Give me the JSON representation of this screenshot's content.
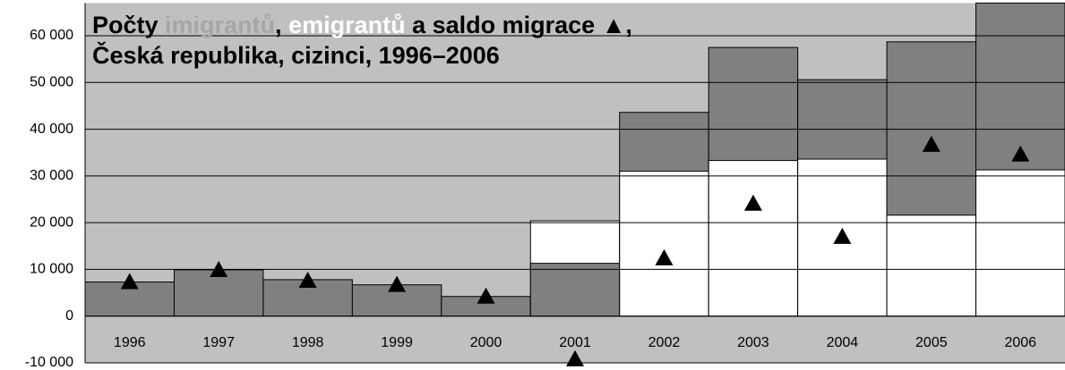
{
  "chart_data": {
    "type": "overlap-bar",
    "title_runs": [
      {
        "text": "Počty ",
        "color": "#000000"
      },
      {
        "text": "imigrantů",
        "color": "#a6a6a6"
      },
      {
        "text": ", ",
        "color": "#000000"
      },
      {
        "text": "emigrantů",
        "color": "#ffffff"
      },
      {
        "text": " a saldo migrace ▲,",
        "color": "#000000"
      }
    ],
    "subtitle": "Česká republika, cizinci, 1996–2006",
    "categories": [
      "1996",
      "1997",
      "1998",
      "1999",
      "2000",
      "2001",
      "2002",
      "2003",
      "2004",
      "2005",
      "2006"
    ],
    "series": [
      {
        "color": "#808080",
        "values": [
          7300,
          9900,
          7800,
          6700,
          4200,
          11300,
          43600,
          57500,
          50600,
          58700,
          67000
        ]
      },
      {
        "color": "#ffffff",
        "values": [
          0,
          0,
          0,
          0,
          0,
          20400,
          31000,
          33300,
          33600,
          21600,
          31300
        ]
      },
      {
        "color": "#000000",
        "marker": "triangle",
        "values": [
          7300,
          9900,
          7600,
          6700,
          4200,
          -9200,
          12400,
          24100,
          17000,
          36700,
          34600
        ]
      }
    ],
    "ylim": [
      -10000,
      67000
    ],
    "yticks": [
      {
        "value": -10000,
        "label": "-10 000"
      },
      0,
      {
        "value": 10000,
        "label": "10 000"
      },
      {
        "value": 20000,
        "label": "20 000"
      },
      {
        "value": 30000,
        "label": "30 000"
      },
      {
        "value": 40000,
        "label": "40 000"
      },
      {
        "value": 50000,
        "label": "50 000"
      },
      {
        "value": 60000,
        "label": "60 000"
      }
    ],
    "grid": true,
    "background": "#c0c0c0"
  }
}
